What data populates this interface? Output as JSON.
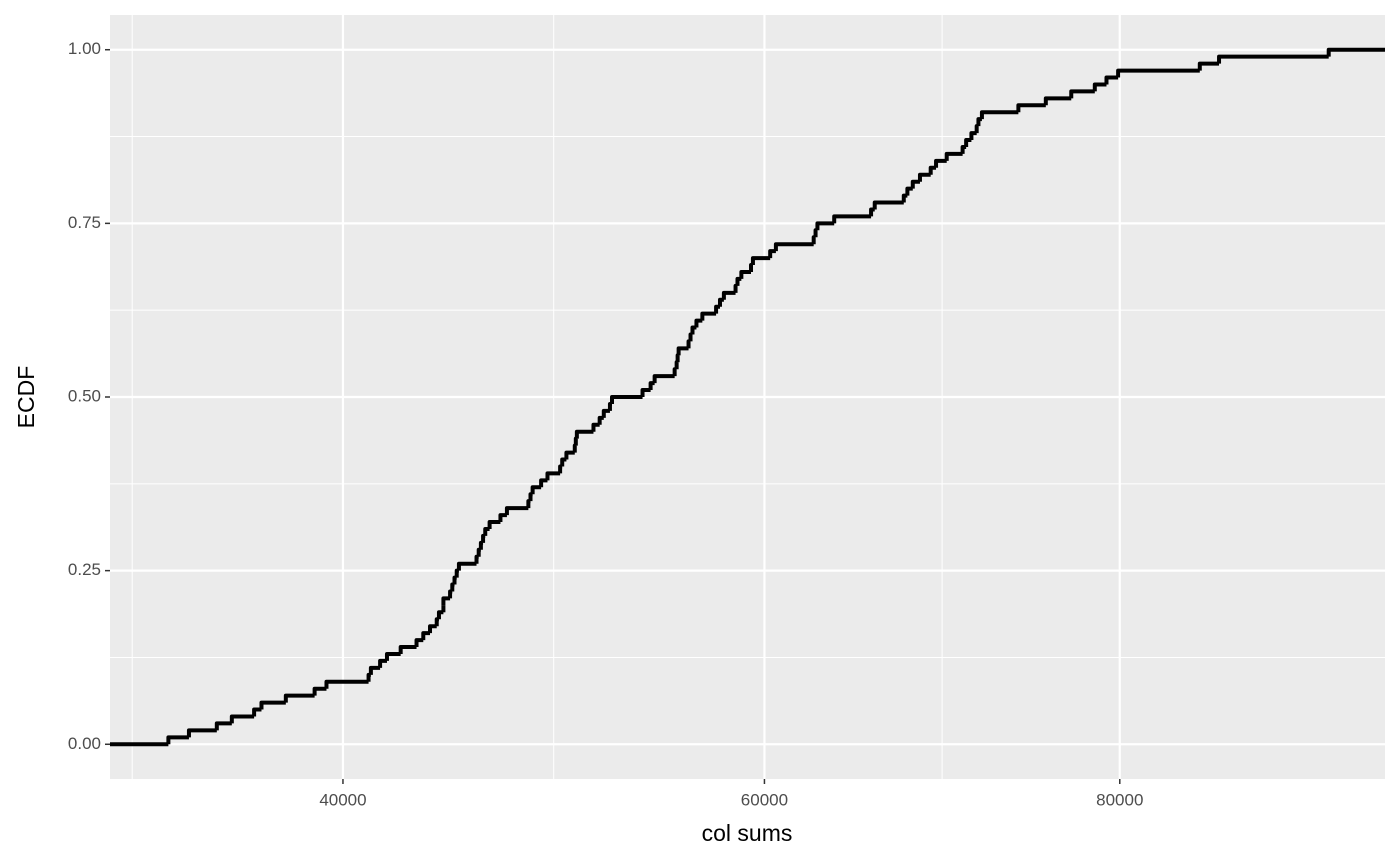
{
  "chart_data": {
    "type": "ecdf",
    "x_label": "col sums",
    "y_label": "ECDF",
    "values": [
      32900,
      33700,
      34800,
      35400,
      36300,
      36600,
      37600,
      38800,
      39300,
      41100,
      41200,
      41600,
      41900,
      42500,
      43200,
      43500,
      43800,
      44100,
      44200,
      44400,
      44400,
      44700,
      44800,
      44900,
      45000,
      45100,
      45900,
      46000,
      46100,
      46200,
      46300,
      46500,
      47000,
      47300,
      48300,
      48400,
      48500,
      48900,
      49200,
      49800,
      49900,
      50100,
      50500,
      50550,
      50600,
      51400,
      51700,
      51900,
      52200,
      52300,
      53800,
      54200,
      54400,
      55400,
      55500,
      55550,
      55600,
      56100,
      56200,
      56300,
      56500,
      56800,
      57500,
      57700,
      57900,
      58500,
      58600,
      58800,
      59300,
      59400,
      60300,
      60600,
      62600,
      62700,
      62800,
      63700,
      65700,
      65900,
      67500,
      67700,
      68000,
      68400,
      69000,
      69300,
      69900,
      70800,
      71000,
      71300,
      71600,
      71700,
      71900,
      74000,
      75600,
      77100,
      78500,
      79200,
      79900,
      84900,
      86100,
      93100
    ],
    "color": "#000000",
    "x_scale": "sqrt",
    "xlim": [
      30680,
      96800
    ],
    "xticks": [
      40000,
      60000,
      80000
    ],
    "ylim": [
      -0.05,
      1.05
    ],
    "yticks": [
      {
        "value": 0,
        "label": "0.00"
      },
      {
        "value": 0.25,
        "label": "0.25"
      },
      {
        "value": 0.5,
        "label": "0.50"
      },
      {
        "value": 0.75,
        "label": "0.75"
      },
      {
        "value": 1,
        "label": "1.00"
      }
    ],
    "grid": true
  }
}
